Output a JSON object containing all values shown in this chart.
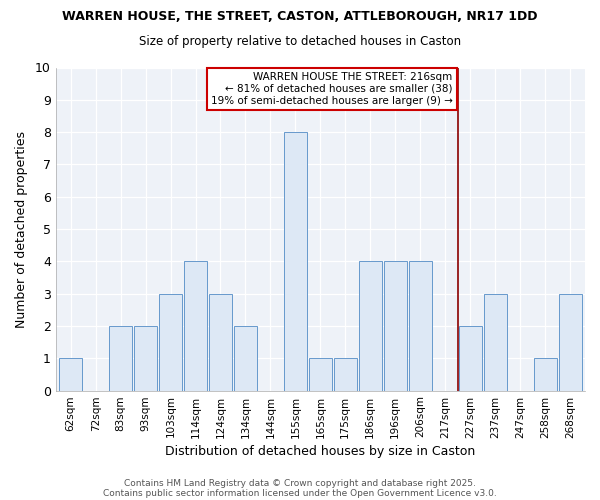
{
  "title1": "WARREN HOUSE, THE STREET, CASTON, ATTLEBOROUGH, NR17 1DD",
  "title2": "Size of property relative to detached houses in Caston",
  "xlabel": "Distribution of detached houses by size in Caston",
  "ylabel": "Number of detached properties",
  "categories": [
    "62sqm",
    "72sqm",
    "83sqm",
    "93sqm",
    "103sqm",
    "114sqm",
    "124sqm",
    "134sqm",
    "144sqm",
    "155sqm",
    "165sqm",
    "175sqm",
    "186sqm",
    "196sqm",
    "206sqm",
    "217sqm",
    "227sqm",
    "237sqm",
    "247sqm",
    "258sqm",
    "268sqm"
  ],
  "values": [
    1,
    0,
    2,
    2,
    3,
    4,
    3,
    2,
    0,
    8,
    1,
    1,
    4,
    4,
    4,
    0,
    2,
    3,
    0,
    1,
    3
  ],
  "bar_color": "#dde8f5",
  "bar_edgecolor": "#6699cc",
  "vline_x": 15.5,
  "vline_color": "#8b0000",
  "annotation_title": "WARREN HOUSE THE STREET: 216sqm",
  "annotation_line1": "← 81% of detached houses are smaller (38)",
  "annotation_line2": "19% of semi-detached houses are larger (9) →",
  "annotation_box_color": "#cc0000",
  "ylim": [
    0,
    10
  ],
  "yticks": [
    0,
    1,
    2,
    3,
    4,
    5,
    6,
    7,
    8,
    9,
    10
  ],
  "footer1": "Contains HM Land Registry data © Crown copyright and database right 2025.",
  "footer2": "Contains public sector information licensed under the Open Government Licence v3.0.",
  "bg_color": "#ffffff",
  "plot_bg_color": "#eef2f8"
}
